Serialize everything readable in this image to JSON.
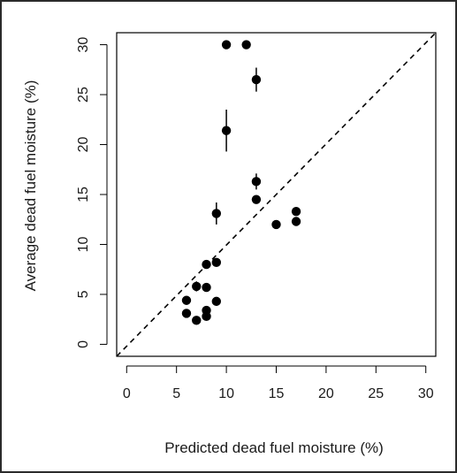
{
  "chart_data": {
    "type": "scatter",
    "xlabel": "Predicted dead fuel moisture (%)",
    "ylabel": "Average dead fuel moisture (%)",
    "xlim": [
      -1,
      31
    ],
    "ylim": [
      -1.2,
      31.2
    ],
    "xticks": [
      "0",
      "5",
      "10",
      "15",
      "20",
      "25",
      "30"
    ],
    "yticks": [
      "0",
      "5",
      "10",
      "15",
      "20",
      "25",
      "30"
    ],
    "reference_line": "1:1 dashed",
    "grid": false,
    "legend": "none",
    "points": [
      {
        "x": 10,
        "y": 30.0,
        "err": 0
      },
      {
        "x": 12,
        "y": 30.0,
        "err": 0
      },
      {
        "x": 13,
        "y": 26.5,
        "err": 1.2
      },
      {
        "x": 10,
        "y": 21.4,
        "err": 2.1
      },
      {
        "x": 13,
        "y": 16.3,
        "err": 0.8
      },
      {
        "x": 13,
        "y": 14.5,
        "err": 0.3
      },
      {
        "x": 9,
        "y": 13.1,
        "err": 1.1
      },
      {
        "x": 17,
        "y": 13.3,
        "err": 0
      },
      {
        "x": 17,
        "y": 12.3,
        "err": 0
      },
      {
        "x": 15,
        "y": 12.0,
        "err": 0
      },
      {
        "x": 9,
        "y": 8.2,
        "err": 0
      },
      {
        "x": 8,
        "y": 8.0,
        "err": 0
      },
      {
        "x": 7,
        "y": 5.8,
        "err": 0.5
      },
      {
        "x": 8,
        "y": 5.7,
        "err": 0
      },
      {
        "x": 6,
        "y": 4.4,
        "err": 0
      },
      {
        "x": 9,
        "y": 4.3,
        "err": 0
      },
      {
        "x": 8,
        "y": 3.4,
        "err": 0
      },
      {
        "x": 6,
        "y": 3.1,
        "err": 0
      },
      {
        "x": 8,
        "y": 2.8,
        "err": 0
      },
      {
        "x": 7,
        "y": 2.4,
        "err": 0
      }
    ]
  },
  "colors": {
    "points": "#000000",
    "axes": "#000000",
    "frame": "#2b2b2b"
  }
}
